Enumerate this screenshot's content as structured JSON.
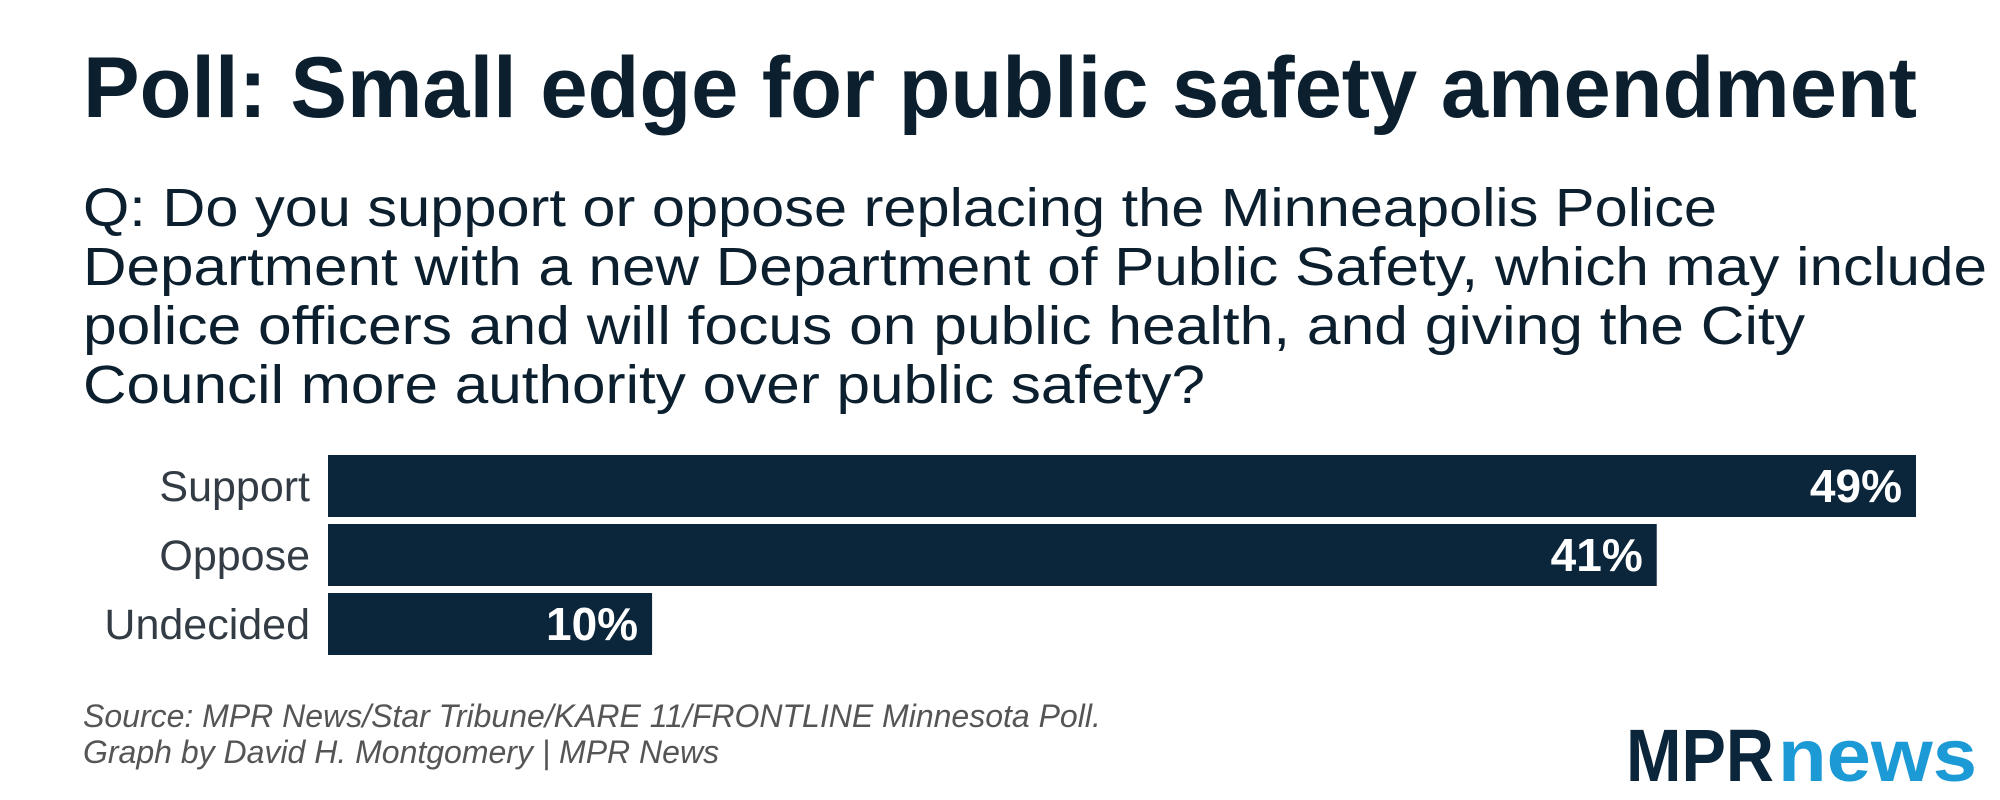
{
  "chart_data": {
    "type": "bar",
    "orientation": "horizontal",
    "title": "Poll: Small edge for public safety amendment",
    "subtitle": [
      "Q: Do you support or oppose replacing the Minneapolis Police",
      "Department with a new Department of Public Safety, which may include",
      "police officers and will focus on public health, and giving the City",
      "Council more authority over public safety?"
    ],
    "categories": [
      "Support",
      "Oppose",
      "Undecided"
    ],
    "values": [
      49,
      41,
      10
    ],
    "value_labels": [
      "49%",
      "41%",
      "10%"
    ],
    "color": "#0b253a",
    "source": [
      "Source: MPR News/Star Tribune/KARE 11/FRONTLINE Minnesota Poll.",
      "Graph by David H. Montgomery | MPR News"
    ],
    "logo": {
      "mpr": "MPR",
      "news": "news"
    }
  }
}
